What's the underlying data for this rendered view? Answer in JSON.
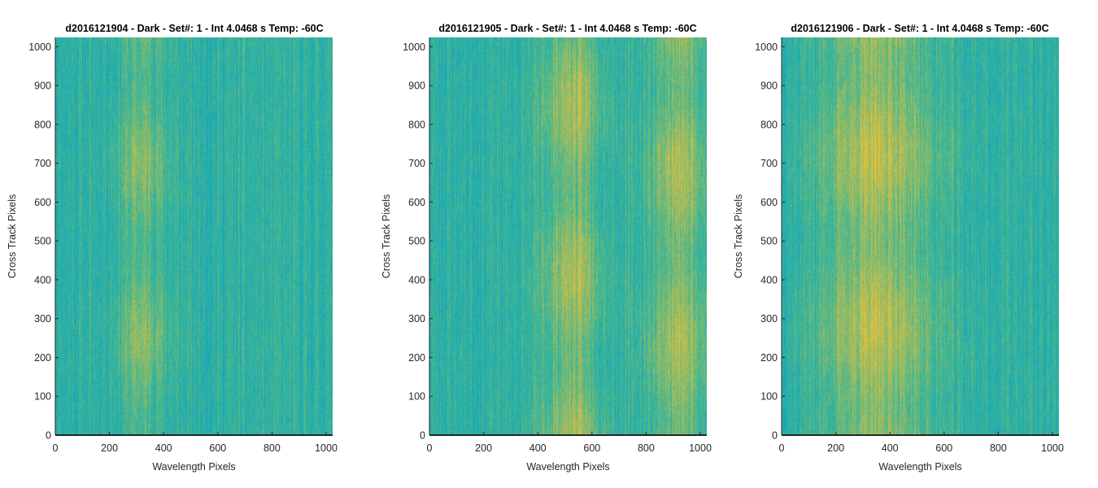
{
  "chart_data": [
    {
      "type": "heatmap",
      "title": "d2016121904 - Dark - Set#: 1 - Int 4.0468 s Temp: -60C",
      "xlabel": "Wavelength Pixels",
      "ylabel": "Cross Track Pixels",
      "xlim": [
        0,
        1024
      ],
      "ylim": [
        0,
        1024
      ],
      "xticks": [
        0,
        200,
        400,
        600,
        800,
        1000
      ],
      "yticks": [
        0,
        100,
        200,
        300,
        400,
        500,
        600,
        700,
        800,
        900,
        1000
      ],
      "colormap": "parula",
      "warm_band_centers": [
        320
      ],
      "warm_band_width": 90,
      "warm_band_strength": 0.35,
      "seed": 11
    },
    {
      "type": "heatmap",
      "title": "d2016121905 - Dark - Set#: 1 - Int 4.0468 s Temp: -60C",
      "xlabel": "Wavelength Pixels",
      "ylabel": "Cross Track Pixels",
      "xlim": [
        0,
        1024
      ],
      "ylim": [
        0,
        1024
      ],
      "xticks": [
        0,
        200,
        400,
        600,
        800,
        1000
      ],
      "yticks": [
        0,
        100,
        200,
        300,
        400,
        500,
        600,
        700,
        800,
        900,
        1000
      ],
      "colormap": "parula",
      "warm_band_centers": [
        530,
        920
      ],
      "warm_band_width": 110,
      "warm_band_strength": 0.5,
      "seed": 23
    },
    {
      "type": "heatmap",
      "title": "d2016121906 - Dark - Set#: 1 - Int 4.0468 s Temp: -60C",
      "xlabel": "Wavelength Pixels",
      "ylabel": "Cross Track Pixels",
      "xlim": [
        0,
        1024
      ],
      "ylim": [
        0,
        1024
      ],
      "xticks": [
        0,
        200,
        400,
        600,
        800,
        1000
      ],
      "yticks": [
        0,
        100,
        200,
        300,
        400,
        500,
        600,
        700,
        800,
        900,
        1000
      ],
      "colormap": "parula",
      "warm_band_centers": [
        350
      ],
      "warm_band_width": 200,
      "warm_band_strength": 0.6,
      "seed": 37
    }
  ]
}
